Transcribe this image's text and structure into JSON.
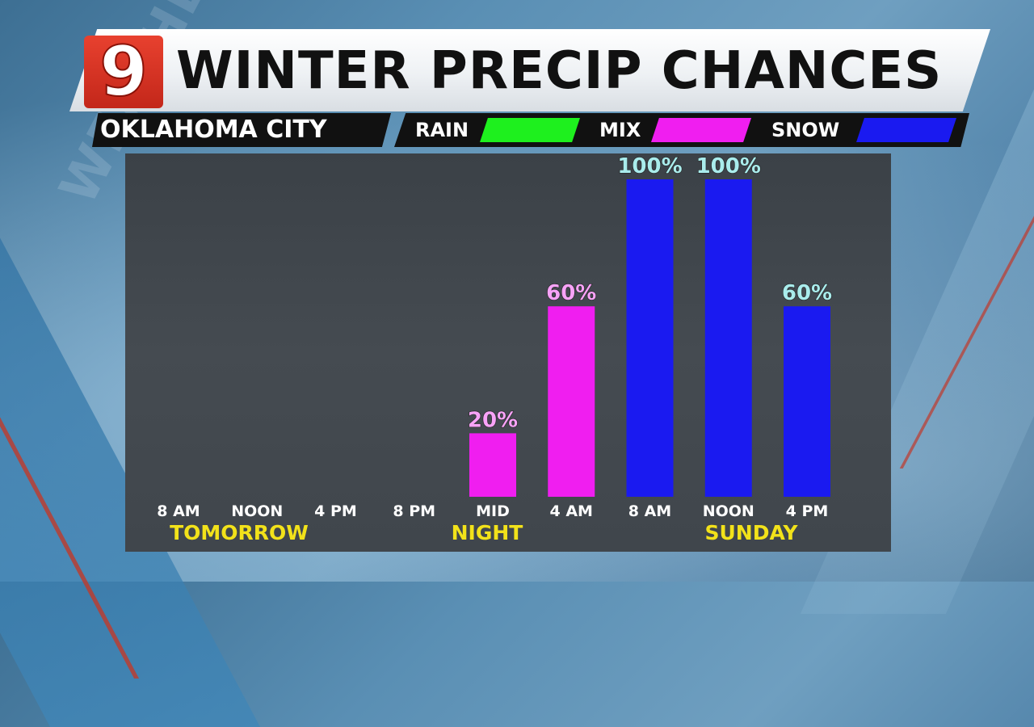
{
  "header": {
    "logo_text": "9",
    "title": "WINTER PRECIP CHANCES",
    "location": "OKLAHOMA CITY"
  },
  "legend": [
    {
      "label": "RAIN",
      "color": "#1ef01e"
    },
    {
      "label": "MIX",
      "color": "#f01ef0"
    },
    {
      "label": "SNOW",
      "color": "#1a1af0"
    }
  ],
  "watermark": "WEATHER",
  "day_labels": {
    "tomorrow": "TOMORROW",
    "night": "NIGHT",
    "sunday": "SUNDAY"
  },
  "chart_data": {
    "type": "bar",
    "categories": [
      "8 AM",
      "NOON",
      "4 PM",
      "8 PM",
      "MID",
      "4 AM",
      "8 AM",
      "NOON",
      "4 PM"
    ],
    "values": [
      0,
      0,
      0,
      0,
      20,
      60,
      100,
      100,
      60
    ],
    "value_labels": [
      "",
      "",
      "",
      "",
      "20%",
      "60%",
      "100%",
      "100%",
      "60%"
    ],
    "precip_type": [
      "",
      "",
      "",
      "",
      "MIX",
      "MIX",
      "SNOW",
      "SNOW",
      "SNOW"
    ],
    "ylim": [
      0,
      100
    ],
    "grid": false,
    "legend_position": "top",
    "colors": {
      "RAIN": "#1ef01e",
      "MIX": "#f01ef0",
      "SNOW": "#1a1af0"
    },
    "label_colors": {
      "MIX": "#f7a3f7",
      "SNOW": "#a9ecec"
    }
  }
}
